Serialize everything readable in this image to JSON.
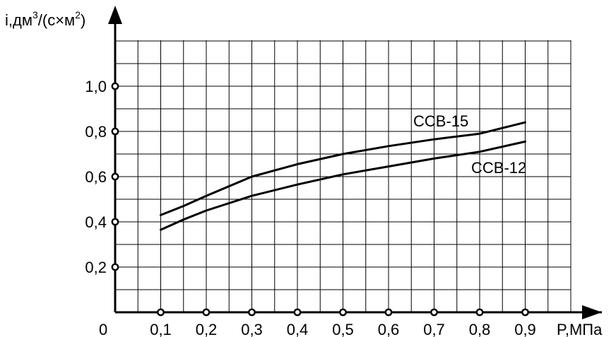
{
  "chart_data": {
    "type": "line",
    "title": "",
    "xlabel": "P,МПа",
    "ylabel_parts": {
      "base": "i,дм",
      "sup1": "3",
      "middle": "/(с×м",
      "sup2": "2",
      "end": ")"
    },
    "origin_label": "0",
    "xlim": [
      0,
      0.9
    ],
    "ylim": [
      0,
      1.2
    ],
    "grid": true,
    "x_ticks": [
      {
        "value": 0.1,
        "label": "0,1"
      },
      {
        "value": 0.2,
        "label": "0,2"
      },
      {
        "value": 0.3,
        "label": "0,3"
      },
      {
        "value": 0.4,
        "label": "0,4"
      },
      {
        "value": 0.5,
        "label": "0,5"
      },
      {
        "value": 0.6,
        "label": "0,6"
      },
      {
        "value": 0.7,
        "label": "0,7"
      },
      {
        "value": 0.8,
        "label": "0,8"
      },
      {
        "value": 0.9,
        "label": "0,9"
      }
    ],
    "y_ticks": [
      {
        "value": 0.2,
        "label": "0,2"
      },
      {
        "value": 0.4,
        "label": "0,4"
      },
      {
        "value": 0.6,
        "label": "0,6"
      },
      {
        "value": 0.8,
        "label": "0,8"
      },
      {
        "value": 1.0,
        "label": "1,0"
      }
    ],
    "series": [
      {
        "name": "ССВ-15",
        "x": [
          0.1,
          0.15,
          0.2,
          0.3,
          0.4,
          0.5,
          0.6,
          0.7,
          0.8,
          0.9
        ],
        "y": [
          0.43,
          0.47,
          0.515,
          0.6,
          0.655,
          0.7,
          0.735,
          0.765,
          0.79,
          0.84
        ]
      },
      {
        "name": "ССВ-12",
        "x": [
          0.1,
          0.15,
          0.2,
          0.3,
          0.4,
          0.5,
          0.6,
          0.7,
          0.8,
          0.9
        ],
        "y": [
          0.365,
          0.41,
          0.45,
          0.515,
          0.565,
          0.61,
          0.645,
          0.68,
          0.71,
          0.755
        ]
      }
    ]
  }
}
